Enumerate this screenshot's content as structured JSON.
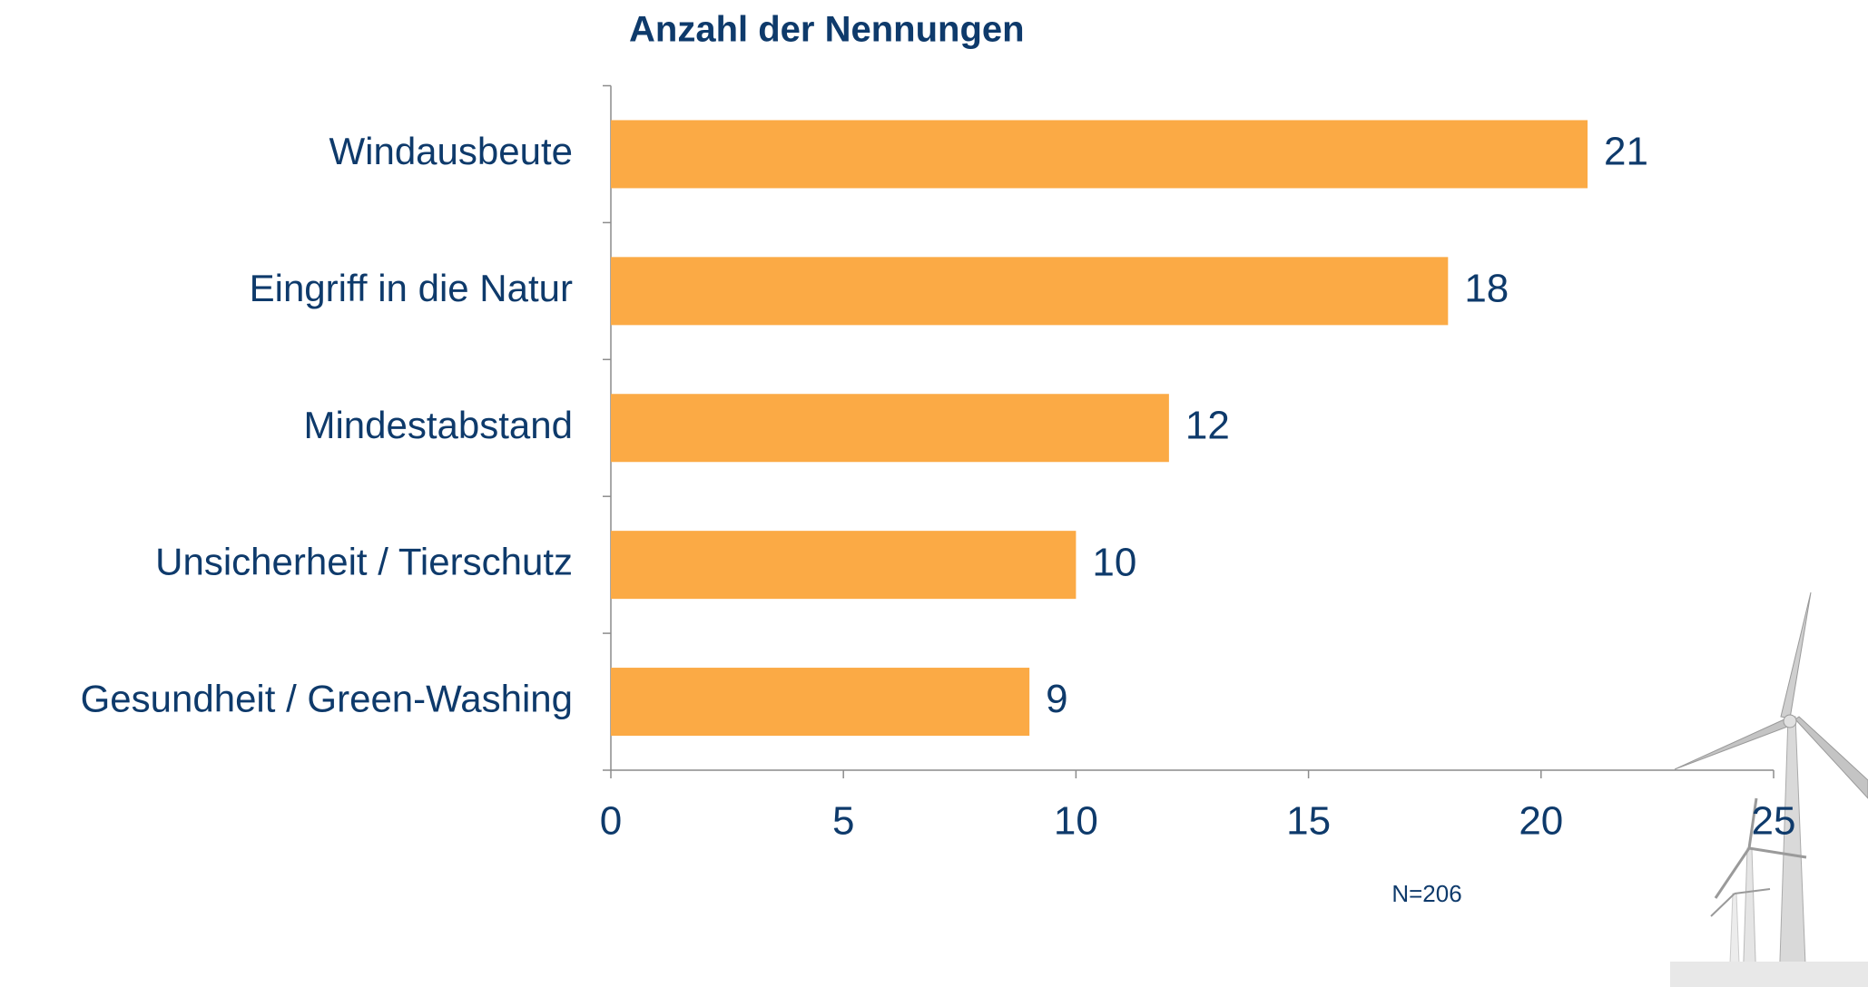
{
  "chart_data": {
    "type": "bar",
    "orientation": "horizontal",
    "title": "Anzahl der Nennungen",
    "categories": [
      "Windausbeute",
      "Eingriff in die Natur",
      "Mindestabstand",
      "Unsicherheit / Tierschutz",
      "Gesundheit / Green-Washing"
    ],
    "values": [
      21,
      18,
      12,
      10,
      9
    ],
    "color": "#fbaa45",
    "xlim": [
      0,
      25
    ],
    "xticks": [
      0,
      5,
      10,
      15,
      20,
      25
    ],
    "grid": false,
    "annotation": "N=206"
  }
}
